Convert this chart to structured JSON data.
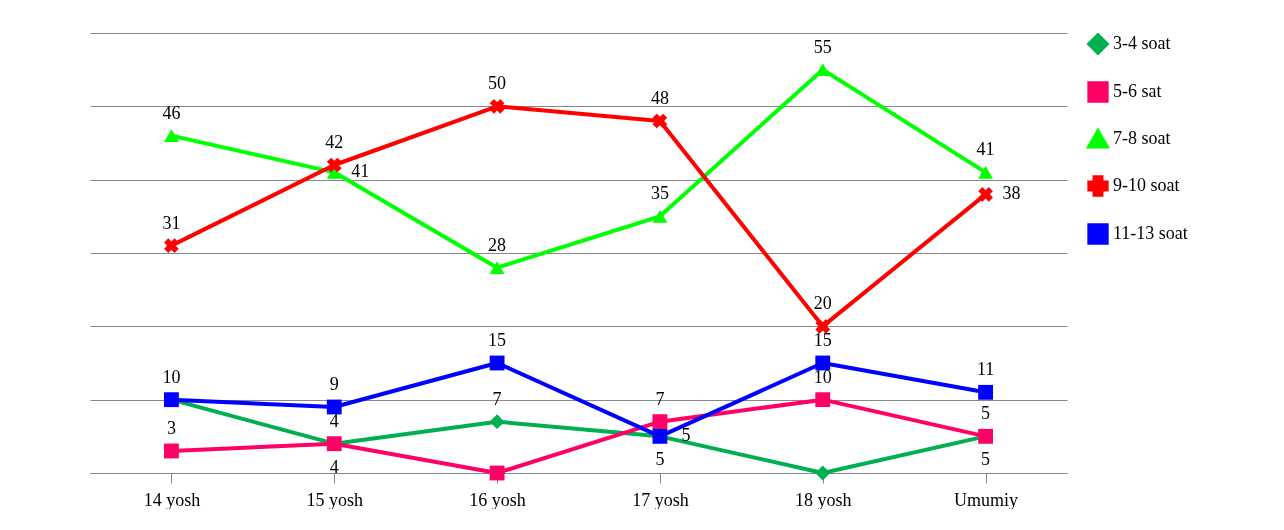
{
  "chart_data": {
    "type": "line",
    "categories": [
      "14 yosh",
      "15 yosh",
      "16 yosh",
      "17 yosh",
      "18 yosh",
      "Umumiy"
    ],
    "ylim": [
      0,
      60
    ],
    "yticks": [
      0,
      10,
      20,
      30,
      40,
      50,
      60
    ],
    "tick_labels": "x",
    "grid": "y",
    "legend": "right",
    "series": [
      {
        "name": "3-4  soat",
        "color": "#00b050",
        "marker": "diamond",
        "values": [
          10,
          4,
          7,
          5,
          0,
          5
        ],
        "value_labels": [
          null,
          "4",
          "7",
          "5",
          null,
          "5"
        ]
      },
      {
        "name": "5-6 sat",
        "color": "#ff0066",
        "marker": "square",
        "values": [
          3,
          4,
          0,
          7,
          10,
          5
        ],
        "value_labels": [
          "3",
          "4",
          null,
          "7",
          "10",
          "5"
        ]
      },
      {
        "name": " 7-8 soat",
        "color": "#00ff00",
        "marker": "triangle",
        "values": [
          46,
          41,
          28,
          35,
          55,
          41
        ],
        "value_labels": [
          "46",
          "41",
          "28",
          "35",
          "55",
          "41"
        ]
      },
      {
        "name": "9-10 soat",
        "color": "#ff0000",
        "marker": "cross",
        "values": [
          31,
          42,
          50,
          48,
          20,
          38
        ],
        "value_labels": [
          "31",
          "42",
          "50",
          "48",
          "20",
          "38"
        ]
      },
      {
        "name": "11-13 soat",
        "color": "#0000ff",
        "marker": "square",
        "values": [
          10,
          9,
          15,
          5,
          15,
          11
        ],
        "value_labels": [
          "10",
          "9",
          "15",
          "5",
          "15",
          "11"
        ]
      }
    ]
  }
}
